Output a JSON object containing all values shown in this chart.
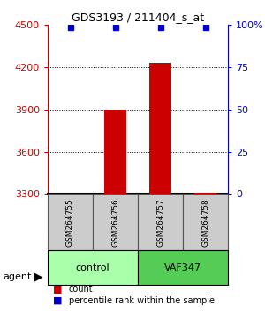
{
  "title": "GDS3193 / 211404_s_at",
  "samples": [
    "GSM264755",
    "GSM264756",
    "GSM264757",
    "GSM264758"
  ],
  "counts": [
    3300,
    3900,
    4230,
    3310
  ],
  "percentile_ranks": [
    99,
    99,
    99,
    99
  ],
  "ylim_left": [
    3300,
    4500
  ],
  "ylim_right": [
    0,
    100
  ],
  "yticks_left": [
    3300,
    3600,
    3900,
    4200,
    4500
  ],
  "yticks_right": [
    0,
    25,
    50,
    75,
    100
  ],
  "ytick_labels_right": [
    "0",
    "25",
    "50",
    "75",
    "100%"
  ],
  "bar_color": "#cc0000",
  "dot_color": "#0000cc",
  "grid_color": "#000000",
  "bg_color": "#ffffff",
  "left_tick_color": "#cc0000",
  "right_tick_color": "#0000cc",
  "groups": [
    {
      "label": "control",
      "samples": [
        0,
        1
      ],
      "color": "#aaffaa"
    },
    {
      "label": "VAF347",
      "samples": [
        2,
        3
      ],
      "color": "#55cc55"
    }
  ],
  "agent_label": "agent",
  "legend_count_color": "#cc0000",
  "legend_pct_color": "#0000cc",
  "bar_width": 0.5,
  "sample_box_color": "#cccccc",
  "sample_box_edge": "#555555"
}
